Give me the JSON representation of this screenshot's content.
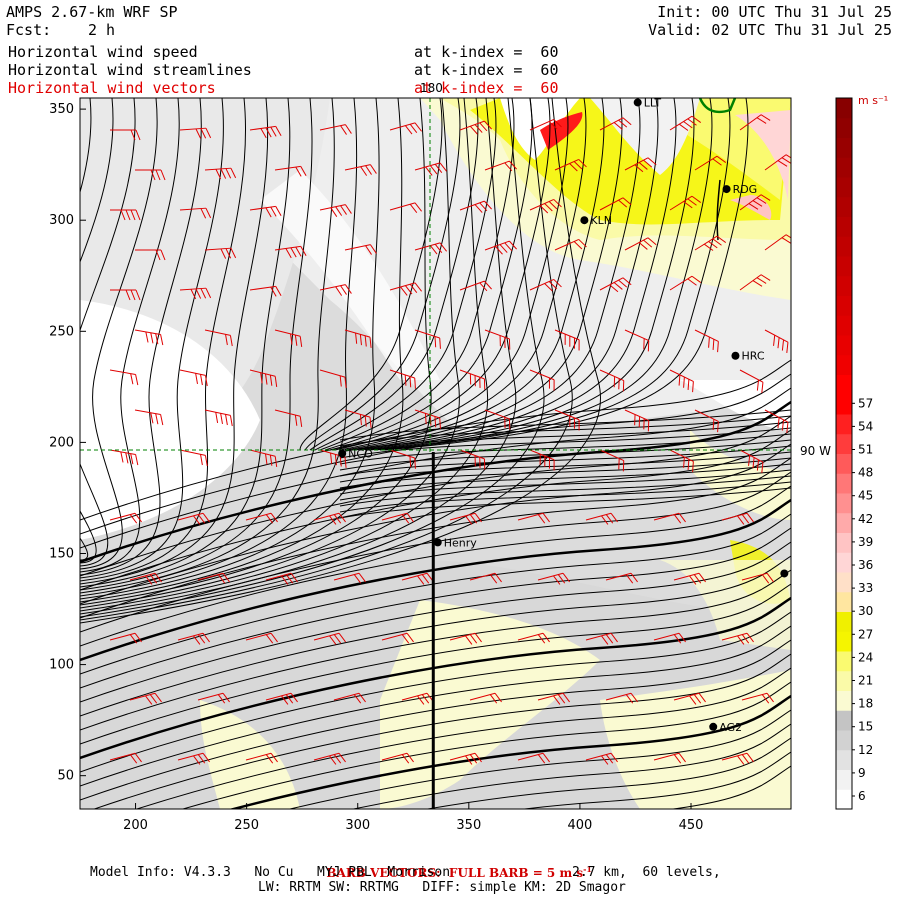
{
  "header": {
    "title": "AMPS 2.67-km WRF SP",
    "fcst_label": "Fcst:",
    "fcst_value": "2 h",
    "init": "Init: 00 UTC Thu 31 Jul 25",
    "valid": "Valid: 02 UTC Thu 31 Jul 25"
  },
  "fields": [
    {
      "name": "Horizontal wind speed",
      "level": "at k-index =  60",
      "color": "#000000"
    },
    {
      "name": "Horizontal wind streamlines",
      "level": "at k-index =  60",
      "color": "#000000"
    },
    {
      "name": "Horizontal wind vectors",
      "level": "at k-index =  60",
      "color": "#e00000"
    }
  ],
  "map": {
    "x_ticks": [
      200,
      250,
      300,
      350,
      400,
      450
    ],
    "y_ticks": [
      50,
      100,
      150,
      200,
      250,
      300,
      350
    ],
    "x_range": [
      175,
      495
    ],
    "y_range": [
      35,
      355
    ],
    "lon_label": "180",
    "lat_label": "90 W",
    "cross_section_x": 334,
    "stations": [
      {
        "name": "LLT",
        "x": 426,
        "y": 353
      },
      {
        "name": "RDG",
        "x": 466,
        "y": 314
      },
      {
        "name": "KLN",
        "x": 402,
        "y": 300
      },
      {
        "name": "HRC",
        "x": 470,
        "y": 239
      },
      {
        "name": "NCO",
        "x": 293,
        "y": 195
      },
      {
        "name": "Henry",
        "x": 336,
        "y": 155
      },
      {
        "name": "",
        "x": 492,
        "y": 141
      },
      {
        "name": "AG2",
        "x": 460,
        "y": 72
      }
    ]
  },
  "colorbar": {
    "unit": "m s⁻¹",
    "ticks": [
      6,
      9,
      12,
      15,
      18,
      21,
      24,
      27,
      30,
      33,
      36,
      39,
      42,
      45,
      48,
      51,
      54,
      57
    ],
    "colors": [
      "#ffffff",
      "#f2f2f2",
      "#e2e2e2",
      "#d2d2d2",
      "#c4c4c4",
      "#fafad2",
      "#fafaa8",
      "#fafa70",
      "#f5f500",
      "#f0f000",
      "#ffe6a0",
      "#ffe0c8",
      "#ffd6d6",
      "#ffc4c4",
      "#ffaaaa",
      "#ff9090",
      "#ff7777",
      "#ff5a5a",
      "#ff3c3c",
      "#ff2020",
      "#ff0000",
      "#ff0000",
      "#f00000",
      "#e80000",
      "#e00000",
      "#d80000",
      "#d00000",
      "#c80000",
      "#c00000",
      "#b80000",
      "#b00000",
      "#a80000",
      "#a00000",
      "#980000",
      "#900000",
      "#880000"
    ]
  },
  "barb_note": {
    "prefix": "BARB VECTORS:  FULL BARB = 5 m s",
    "sup": "-1"
  },
  "footer": {
    "line1_left": "Model Info: V4.3.3   No Cu   MYJ PBL  Morrison",
    "line1_right": "2.7 km,  60 levels,",
    "line2": "LW: RRTM SW: RRTMG   DIFF: simple KM: 2D Smagor"
  }
}
